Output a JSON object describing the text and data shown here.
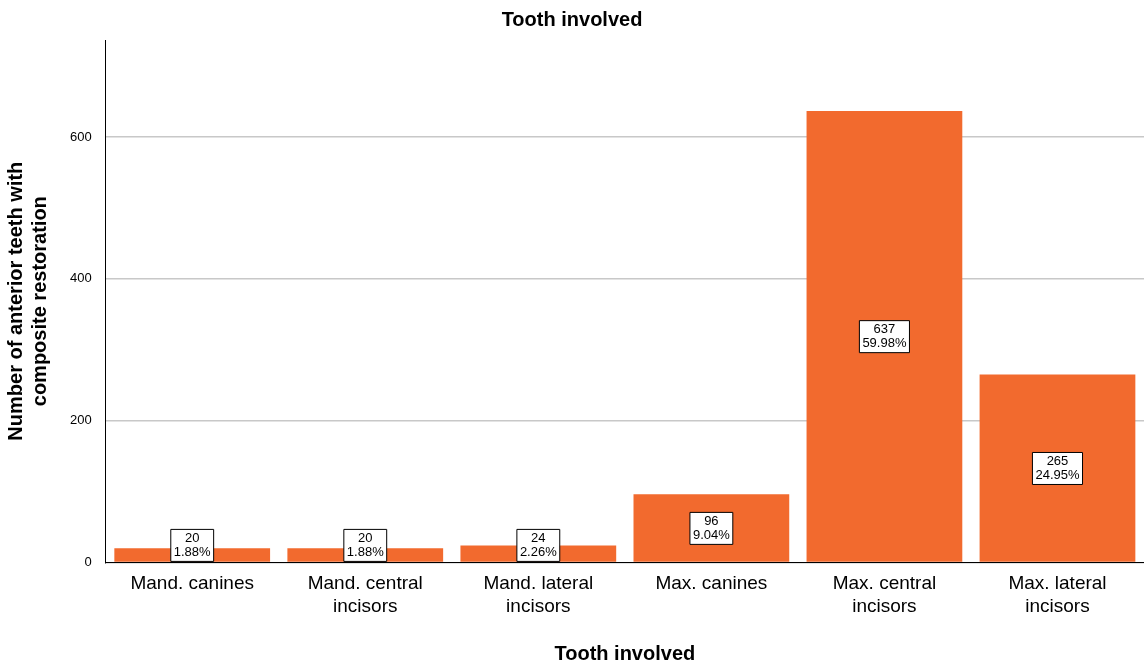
{
  "chart_data": {
    "type": "bar",
    "title": "Tooth involved",
    "xlabel": "Tooth involved",
    "ylabel": "Number of anterior teeth with composite restoration",
    "categories": [
      "Mand. canines",
      "Mand. central incisors",
      "Mand. lateral incisors",
      "Max. canines",
      "Max. central incisors",
      "Max. lateral incisors"
    ],
    "values": [
      20,
      20,
      24,
      96,
      637,
      265
    ],
    "value_labels": [
      "20\n1.88%",
      "20\n1.88%",
      "24\n2.26%",
      "96\n9.04%",
      "637\n59.98%",
      "265\n24.95%"
    ],
    "color": "#f26a2e",
    "ylim": [
      0,
      737
    ],
    "yticks": [
      0,
      200,
      400,
      600
    ],
    "grid": "y",
    "legend": false
  }
}
